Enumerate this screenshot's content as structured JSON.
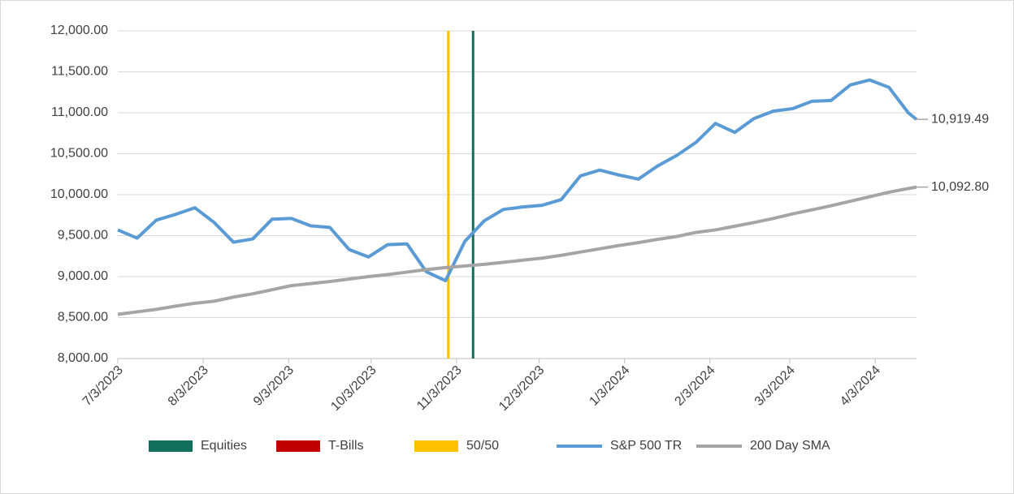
{
  "chart_data": {
    "type": "line",
    "x": [
      "7/3/2023",
      "7/10/2023",
      "7/17/2023",
      "7/24/2023",
      "7/31/2023",
      "8/7/2023",
      "8/14/2023",
      "8/21/2023",
      "8/28/2023",
      "9/4/2023",
      "9/11/2023",
      "9/18/2023",
      "9/25/2023",
      "10/2/2023",
      "10/9/2023",
      "10/16/2023",
      "10/23/2023",
      "10/30/2023",
      "11/6/2023",
      "11/13/2023",
      "11/20/2023",
      "11/27/2023",
      "12/4/2023",
      "12/11/2023",
      "12/18/2023",
      "12/25/2023",
      "1/1/2024",
      "1/8/2024",
      "1/15/2024",
      "1/22/2024",
      "1/29/2024",
      "2/5/2024",
      "2/12/2024",
      "2/19/2024",
      "2/26/2024",
      "3/4/2024",
      "3/11/2024",
      "3/18/2024",
      "3/25/2024",
      "4/1/2024",
      "4/8/2024",
      "4/15/2024",
      "4/18/2024"
    ],
    "series": [
      {
        "name": "Equities",
        "type": "bar",
        "color": "#11705a",
        "x": [
          "11/9/2023"
        ],
        "values": [
          12000
        ]
      },
      {
        "name": "T-Bills",
        "type": "bar",
        "color": "#c00000",
        "x": [],
        "values": []
      },
      {
        "name": "50/50",
        "type": "bar",
        "color": "#ffc000",
        "x": [
          "10/31/2023"
        ],
        "values": [
          12000
        ]
      },
      {
        "name": "S&P 500 TR",
        "type": "line",
        "color": "#5b9bd5",
        "values": [
          9570,
          9470,
          9690,
          9760,
          9840,
          9660,
          9420,
          9460,
          9700,
          9710,
          9620,
          9600,
          9330,
          9240,
          9390,
          9400,
          9060,
          8950,
          9430,
          9680,
          9820,
          9850,
          9870,
          9940,
          10230,
          10300,
          10240,
          10190,
          10350,
          10480,
          10640,
          10870,
          10760,
          10930,
          11020,
          11050,
          11140,
          11150,
          11340,
          11400,
          11310,
          11000,
          10919.49
        ],
        "value_labels": [
          null,
          null,
          null,
          null,
          null,
          null,
          null,
          null,
          null,
          null,
          null,
          null,
          null,
          null,
          null,
          null,
          null,
          null,
          null,
          null,
          null,
          null,
          null,
          null,
          null,
          null,
          null,
          null,
          null,
          null,
          null,
          null,
          null,
          null,
          null,
          null,
          null,
          null,
          null,
          null,
          null,
          null,
          "10,919.49"
        ]
      },
      {
        "name": "200 Day SMA",
        "type": "line",
        "color": "#a5a5a5",
        "values": [
          8540,
          8570,
          8600,
          8640,
          8675,
          8700,
          8750,
          8790,
          8840,
          8890,
          8915,
          8940,
          8970,
          9000,
          9025,
          9055,
          9085,
          9110,
          9130,
          9150,
          9175,
          9200,
          9225,
          9260,
          9300,
          9340,
          9380,
          9415,
          9455,
          9490,
          9540,
          9570,
          9615,
          9660,
          9710,
          9765,
          9815,
          9865,
          9920,
          9975,
          10030,
          10075,
          10092.8
        ],
        "value_labels": [
          null,
          null,
          null,
          null,
          null,
          null,
          null,
          null,
          null,
          null,
          null,
          null,
          null,
          null,
          null,
          null,
          null,
          null,
          null,
          null,
          null,
          null,
          null,
          null,
          null,
          null,
          null,
          null,
          null,
          null,
          null,
          null,
          null,
          null,
          null,
          null,
          null,
          null,
          null,
          null,
          null,
          null,
          "10,092.80"
        ]
      }
    ],
    "xlim": [
      "7/3/2023",
      "4/18/2024"
    ],
    "xticks": [
      "7/3/2023",
      "8/3/2023",
      "9/3/2023",
      "10/3/2023",
      "11/3/2023",
      "12/3/2023",
      "1/3/2024",
      "2/3/2024",
      "3/3/2024",
      "4/3/2024"
    ],
    "ylim": [
      8000,
      12000
    ],
    "yticks": [
      {
        "value": 8000,
        "label": "8,000.00"
      },
      {
        "value": 8500,
        "label": "8,500.00"
      },
      {
        "value": 9000,
        "label": "9,000.00"
      },
      {
        "value": 9500,
        "label": "9,500.00"
      },
      {
        "value": 10000,
        "label": "10,000.00"
      },
      {
        "value": 10500,
        "label": "10,500.00"
      },
      {
        "value": 11000,
        "label": "11,000.00"
      },
      {
        "value": 11500,
        "label": "11,500.00"
      },
      {
        "value": 12000,
        "label": "12,000.00"
      }
    ],
    "grid": true,
    "legend": "bottom"
  }
}
